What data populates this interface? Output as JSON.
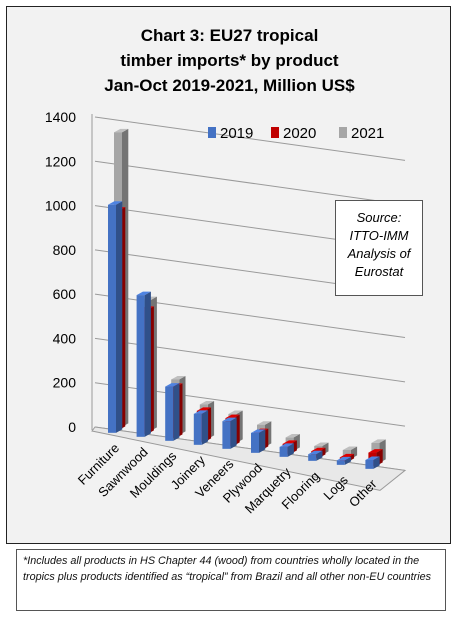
{
  "chart_data": {
    "type": "bar",
    "title_lines": [
      "Chart 3: EU27 tropical",
      "timber imports* by product",
      "Jan-Oct 2019-2021, Million US$"
    ],
    "categories": [
      "Furniture",
      "Sawnwood",
      "Mouldings",
      "Joinery",
      "Veneers",
      "Plywood",
      "Marquetry",
      "Flooring",
      "Logs",
      "Other"
    ],
    "series": [
      {
        "name": "2019",
        "color": "#4472c4",
        "values": [
          1030,
          640,
          245,
          140,
          125,
          90,
          45,
          30,
          20,
          40
        ]
      },
      {
        "name": "2020",
        "color": "#c00000",
        "values": [
          990,
          560,
          230,
          140,
          125,
          80,
          45,
          30,
          20,
          60
        ]
      },
      {
        "name": "2021",
        "color": "#a6a6a6",
        "values": [
          1330,
          590,
          250,
          155,
          130,
          100,
          60,
          40,
          40,
          90
        ]
      }
    ],
    "yticks": [
      0,
      200,
      400,
      600,
      800,
      1000,
      1200,
      1400
    ],
    "ylim": [
      0,
      1400
    ],
    "legend_position": "top-right",
    "grid": true
  },
  "source_box": [
    "Source:",
    "ITTO-IMM",
    "Analysis of",
    "Eurostat"
  ],
  "footnote": "*Includes all products in HS Chapter 44 (wood) from countries wholly located in the tropics plus products identified as “tropical” from Brazil and all other non-EU countries"
}
